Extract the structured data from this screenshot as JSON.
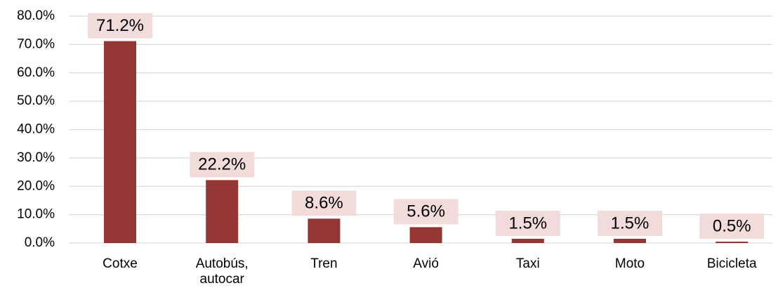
{
  "chart_data": {
    "type": "bar",
    "categories": [
      "Cotxe",
      "Autobús, autocar",
      "Tren",
      "Avió",
      "Taxi",
      "Moto",
      "Bicicleta"
    ],
    "values": [
      71.2,
      22.2,
      8.6,
      5.6,
      1.5,
      1.5,
      0.5
    ],
    "value_labels": [
      "71.2%",
      "22.2%",
      "8.6%",
      "5.6%",
      "1.5%",
      "1.5%",
      "0.5%"
    ],
    "color": "#943634",
    "ylim": [
      0,
      80
    ],
    "yticks": [
      {
        "value": 0,
        "label": "0.0%"
      },
      {
        "value": 10,
        "label": "10.0%"
      },
      {
        "value": 20,
        "label": "20.0%"
      },
      {
        "value": 30,
        "label": "30.0%"
      },
      {
        "value": 40,
        "label": "40.0%"
      },
      {
        "value": 50,
        "label": "50.0%"
      },
      {
        "value": 60,
        "label": "60.0%"
      },
      {
        "value": 70,
        "label": "70.0%"
      },
      {
        "value": 80,
        "label": "80.0%"
      }
    ],
    "grid": true
  }
}
